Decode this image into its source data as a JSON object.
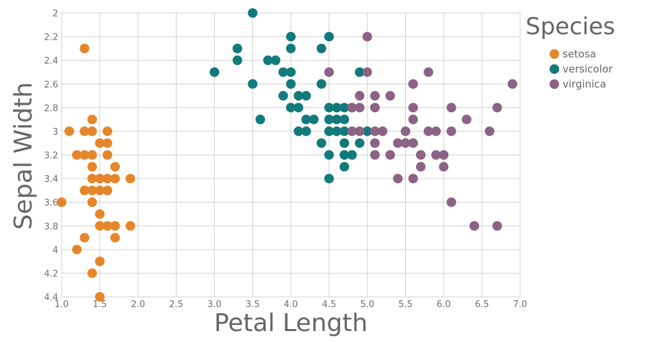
{
  "chart_data": {
    "type": "scatter",
    "xlabel": "Petal Length",
    "ylabel": "Sepal Width",
    "xlim": [
      1.0,
      7.0
    ],
    "ylim": [
      2.0,
      4.4
    ],
    "y_reversed": true,
    "x_ticks": [
      "1.0",
      "1.5",
      "2.0",
      "2.5",
      "3.0",
      "3.5",
      "4.0",
      "4.5",
      "5.0",
      "5.5",
      "6.0",
      "6.5",
      "7.0"
    ],
    "y_ticks": [
      "2",
      "2.2",
      "2.4",
      "2.6",
      "2.8",
      "3",
      "3.2",
      "3.4",
      "3.6",
      "3.8",
      "4",
      "4.2",
      "4.4"
    ],
    "grid": true,
    "legend": {
      "title": "Species",
      "placement": "right"
    },
    "series": [
      {
        "name": "setosa",
        "color": "#e6862a",
        "points": [
          [
            1.3,
            2.3
          ],
          [
            1.1,
            3.0
          ],
          [
            1.3,
            3.0
          ],
          [
            1.4,
            3.0
          ],
          [
            1.6,
            3.0
          ],
          [
            1.4,
            2.9
          ],
          [
            1.5,
            3.1
          ],
          [
            1.6,
            3.1
          ],
          [
            1.2,
            3.2
          ],
          [
            1.3,
            3.2
          ],
          [
            1.4,
            3.2
          ],
          [
            1.6,
            3.2
          ],
          [
            1.4,
            3.3
          ],
          [
            1.7,
            3.3
          ],
          [
            1.4,
            3.4
          ],
          [
            1.5,
            3.4
          ],
          [
            1.6,
            3.4
          ],
          [
            1.7,
            3.4
          ],
          [
            1.9,
            3.4
          ],
          [
            1.3,
            3.5
          ],
          [
            1.4,
            3.5
          ],
          [
            1.5,
            3.5
          ],
          [
            1.6,
            3.5
          ],
          [
            1.0,
            3.6
          ],
          [
            1.4,
            3.6
          ],
          [
            1.5,
            3.7
          ],
          [
            1.5,
            3.8
          ],
          [
            1.6,
            3.8
          ],
          [
            1.7,
            3.8
          ],
          [
            1.9,
            3.8
          ],
          [
            1.3,
            3.9
          ],
          [
            1.7,
            3.9
          ],
          [
            1.2,
            4.0
          ],
          [
            1.5,
            4.1
          ],
          [
            1.4,
            4.2
          ],
          [
            1.5,
            4.4
          ]
        ]
      },
      {
        "name": "versicolor",
        "color": "#127a7a",
        "points": [
          [
            3.5,
            2.0
          ],
          [
            4.0,
            2.2
          ],
          [
            4.5,
            2.2
          ],
          [
            3.3,
            2.3
          ],
          [
            4.0,
            2.3
          ],
          [
            4.4,
            2.3
          ],
          [
            3.3,
            2.4
          ],
          [
            3.7,
            2.4
          ],
          [
            3.8,
            2.4
          ],
          [
            3.0,
            2.5
          ],
          [
            3.9,
            2.5
          ],
          [
            4.0,
            2.5
          ],
          [
            4.9,
            2.5
          ],
          [
            3.5,
            2.6
          ],
          [
            4.0,
            2.6
          ],
          [
            4.4,
            2.6
          ],
          [
            3.9,
            2.7
          ],
          [
            4.1,
            2.7
          ],
          [
            4.2,
            2.7
          ],
          [
            4.0,
            2.8
          ],
          [
            4.1,
            2.8
          ],
          [
            4.5,
            2.8
          ],
          [
            4.6,
            2.8
          ],
          [
            4.7,
            2.8
          ],
          [
            4.8,
            2.8
          ],
          [
            3.6,
            2.9
          ],
          [
            4.2,
            2.9
          ],
          [
            4.3,
            2.9
          ],
          [
            4.5,
            2.9
          ],
          [
            4.6,
            2.9
          ],
          [
            4.7,
            2.9
          ],
          [
            4.1,
            3.0
          ],
          [
            4.2,
            3.0
          ],
          [
            4.5,
            3.0
          ],
          [
            4.6,
            3.0
          ],
          [
            4.7,
            3.0
          ],
          [
            5.0,
            3.0
          ],
          [
            4.4,
            3.1
          ],
          [
            4.7,
            3.1
          ],
          [
            4.9,
            3.1
          ],
          [
            4.5,
            3.2
          ],
          [
            4.7,
            3.2
          ],
          [
            4.8,
            3.2
          ],
          [
            4.7,
            3.3
          ],
          [
            4.5,
            3.4
          ]
        ]
      },
      {
        "name": "virginica",
        "color": "#8c6384",
        "points": [
          [
            5.0,
            2.2
          ],
          [
            5.8,
            2.5
          ],
          [
            4.5,
            2.5
          ],
          [
            5.0,
            2.5
          ],
          [
            5.6,
            2.6
          ],
          [
            6.9,
            2.6
          ],
          [
            4.9,
            2.7
          ],
          [
            5.1,
            2.7
          ],
          [
            5.3,
            2.7
          ],
          [
            4.8,
            2.8
          ],
          [
            4.9,
            2.8
          ],
          [
            5.1,
            2.8
          ],
          [
            5.6,
            2.8
          ],
          [
            6.1,
            2.8
          ],
          [
            6.7,
            2.8
          ],
          [
            5.6,
            2.9
          ],
          [
            6.3,
            2.9
          ],
          [
            4.8,
            3.0
          ],
          [
            4.9,
            3.0
          ],
          [
            5.1,
            3.0
          ],
          [
            5.2,
            3.0
          ],
          [
            5.5,
            3.0
          ],
          [
            5.8,
            3.0
          ],
          [
            5.9,
            3.0
          ],
          [
            6.1,
            3.0
          ],
          [
            6.6,
            3.0
          ],
          [
            5.1,
            3.1
          ],
          [
            5.4,
            3.1
          ],
          [
            5.5,
            3.1
          ],
          [
            5.6,
            3.1
          ],
          [
            5.1,
            3.2
          ],
          [
            5.3,
            3.2
          ],
          [
            5.7,
            3.2
          ],
          [
            5.9,
            3.2
          ],
          [
            6.0,
            3.2
          ],
          [
            5.7,
            3.3
          ],
          [
            6.0,
            3.3
          ],
          [
            5.4,
            3.4
          ],
          [
            5.6,
            3.4
          ],
          [
            6.1,
            3.6
          ],
          [
            6.4,
            3.8
          ],
          [
            6.7,
            3.8
          ]
        ]
      }
    ]
  }
}
